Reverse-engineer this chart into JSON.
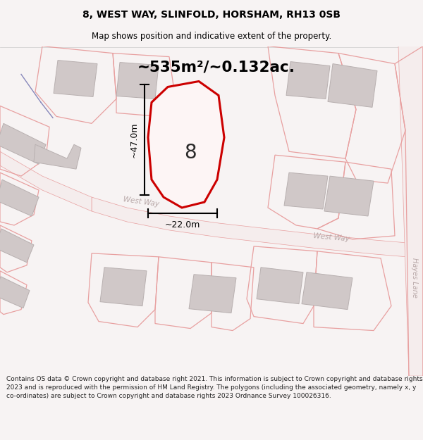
{
  "title": "8, WEST WAY, SLINFOLD, HORSHAM, RH13 0SB",
  "subtitle": "Map shows position and indicative extent of the property.",
  "area_label": "~535m²/~0.132ac.",
  "dim_h": "~47.0m",
  "dim_w": "~22.0m",
  "number_label": "8",
  "west_way_label1": "West Way",
  "west_way_label2": "West Way",
  "hayes_lane_label": "Hayes Lane",
  "footer": "Contains OS data © Crown copyright and database right 2021. This information is subject to Crown copyright and database rights 2023 and is reproduced with the permission of HM Land Registry. The polygons (including the associated geometry, namely x, y co-ordinates) are subject to Crown copyright and database rights 2023 Ordnance Survey 100026316.",
  "bg_color": "#f7f3f3",
  "map_bg": "#ffffff",
  "plot_color": "#cc0000",
  "plot_fill": "#fdf5f5",
  "road_color": "#e8a0a0",
  "road_fill": "#f5eded",
  "building_color": "#d0c8c8",
  "building_edge": "#b8b0b0",
  "cad_color": "#e8a0a0",
  "road_label_color": "#b8a8a8",
  "dim_color": "#000000",
  "title_color": "#000000",
  "footer_color": "#222222",
  "blue_line_color": "#8888bb"
}
